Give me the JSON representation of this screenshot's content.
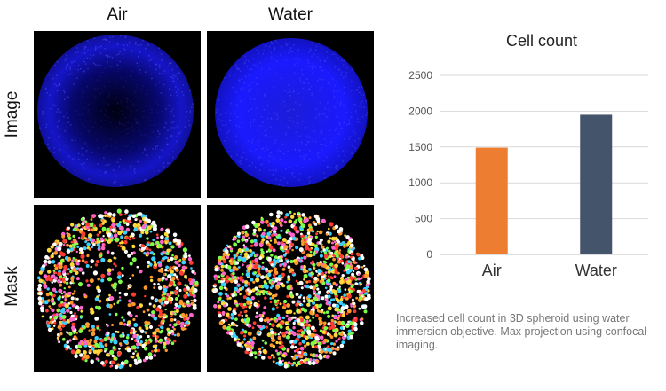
{
  "figure": {
    "columns": [
      "Air",
      "Water"
    ],
    "rows": [
      "Image",
      "Mask"
    ],
    "caption": "Increased cell count in 3D spheroid using water immersion objective. Max projection using confocal imaging."
  },
  "colors": {
    "image_blue": "#1a1aff",
    "mask_palette": [
      "#ff3b2f",
      "#ffd83a",
      "#ffffff",
      "#7dff4a",
      "#ff9a2a",
      "#ff66cc",
      "#3ad0ff"
    ],
    "grid": "#d9d9d9",
    "axis": "#bfbfbf"
  },
  "chart_data": {
    "type": "bar",
    "title": "Cell count",
    "categories": [
      "Air",
      "Water"
    ],
    "values": [
      1490,
      1950
    ],
    "colors": [
      "#ed7d31",
      "#44546a"
    ],
    "ylim": [
      0,
      2500
    ],
    "yticks": [
      0,
      500,
      1000,
      1500,
      2000,
      2500
    ],
    "grid": true,
    "legend": "none",
    "xlabel": "",
    "ylabel": ""
  }
}
